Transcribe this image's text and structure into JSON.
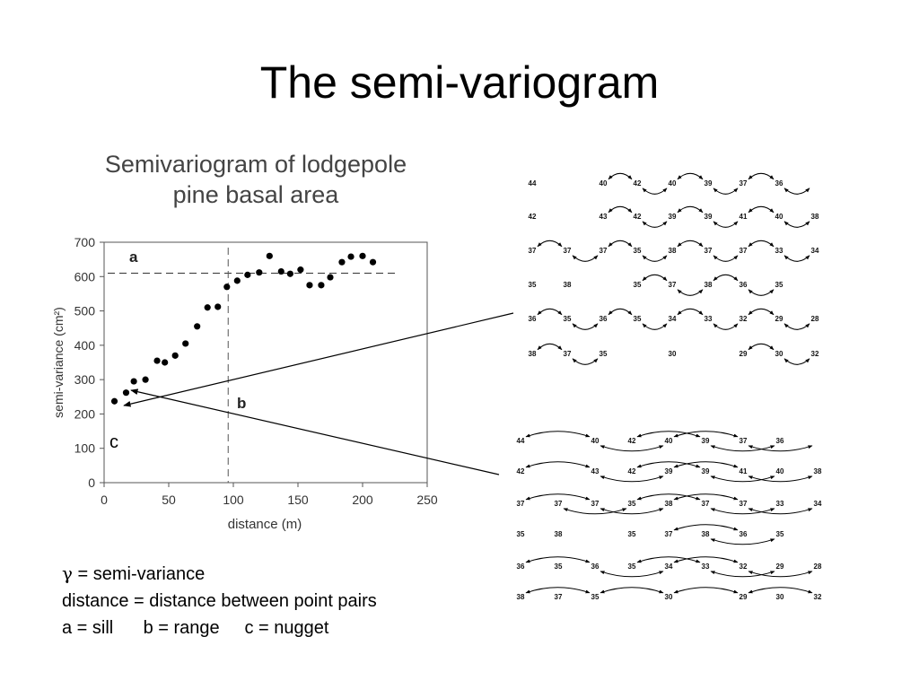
{
  "slide": {
    "title": "The semi-variogram"
  },
  "chart_data": {
    "type": "scatter",
    "title": "Semivariogram of lodgepole pine basal area",
    "title_lines": [
      "Semivariogram of lodgepole",
      "pine basal area"
    ],
    "xlabel": "distance (m)",
    "ylabel": "semi-variance (cm²)",
    "xlim": [
      0,
      250
    ],
    "ylim": [
      0,
      700
    ],
    "xticks": [
      0,
      50,
      100,
      150,
      200,
      250
    ],
    "yticks": [
      0,
      100,
      200,
      300,
      400,
      500,
      600,
      700
    ],
    "grid": false,
    "points": [
      [
        8,
        237
      ],
      [
        17,
        262
      ],
      [
        23,
        295
      ],
      [
        32,
        300
      ],
      [
        41,
        355
      ],
      [
        47,
        350
      ],
      [
        55,
        370
      ],
      [
        63,
        405
      ],
      [
        72,
        455
      ],
      [
        80,
        510
      ],
      [
        88,
        512
      ],
      [
        95,
        570
      ],
      [
        103,
        588
      ],
      [
        111,
        605
      ],
      [
        120,
        612
      ],
      [
        128,
        660
      ],
      [
        137,
        615
      ],
      [
        144,
        608
      ],
      [
        152,
        620
      ],
      [
        159,
        575
      ],
      [
        168,
        575
      ],
      [
        175,
        598
      ],
      [
        184,
        642
      ],
      [
        191,
        658
      ],
      [
        200,
        660
      ],
      [
        208,
        642
      ]
    ],
    "sill": {
      "y": 610,
      "label": "a"
    },
    "range": {
      "x": 96,
      "label": "b"
    },
    "nugget": {
      "label": "c"
    }
  },
  "caption": {
    "line1_symbol": "γ",
    "line1_rest": " = semi-variance",
    "line2": "distance = distance between point pairs",
    "line3": "a = sill      b = range     c = nugget"
  },
  "grid_small": {
    "rows": [
      [
        "44",
        "40",
        "42",
        "40",
        "39",
        "37",
        "36"
      ],
      [
        "42",
        "43",
        "42",
        "39",
        "39",
        "41",
        "40",
        "38"
      ],
      [
        "37",
        "37",
        "37",
        "35",
        "38",
        "37",
        "37",
        "33",
        "34"
      ],
      [
        "35",
        "38",
        "35",
        "37",
        "38",
        "36",
        "35"
      ],
      [
        "36",
        "35",
        "36",
        "35",
        "34",
        "33",
        "32",
        "29",
        "28"
      ],
      [
        "38",
        "37",
        "35",
        "30",
        "29",
        "30",
        "32"
      ]
    ]
  },
  "grid_large": {
    "rows": [
      [
        "44",
        "40",
        "42",
        "40",
        "39",
        "37",
        "36"
      ],
      [
        "42",
        "43",
        "42",
        "39",
        "39",
        "41",
        "40",
        "38"
      ],
      [
        "37",
        "37",
        "37",
        "35",
        "38",
        "37",
        "37",
        "33",
        "34"
      ],
      [
        "35",
        "38",
        "35",
        "37",
        "38",
        "36",
        "35"
      ],
      [
        "36",
        "35",
        "36",
        "35",
        "34",
        "33",
        "32",
        "29",
        "28"
      ],
      [
        "38",
        "37",
        "35",
        "30",
        "29",
        "30",
        "32"
      ]
    ]
  }
}
